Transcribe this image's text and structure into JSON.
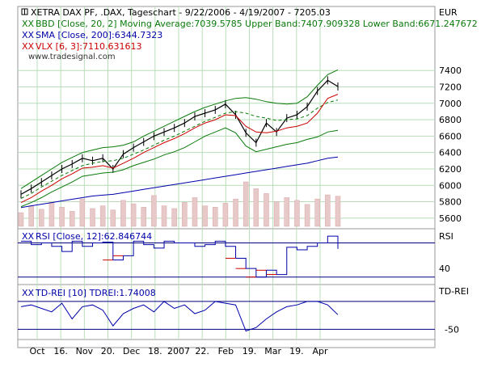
{
  "chart_data": {
    "type": "line",
    "title": "XETRA DAX PF, .DAX, Tageschart - 9/22/2006 - 4/19/2007 - 7205.03",
    "currency": "EUR",
    "watermark": "www.tradesignal.com",
    "x_tick_labels": [
      "Oct",
      "16.",
      "Nov",
      "20.",
      "Dec",
      "18.",
      "2007",
      "22.",
      "Feb",
      "19.",
      "Mar",
      "19.",
      "Apr"
    ],
    "legend": [
      {
        "marker": "XX",
        "text": "BBD [Close, 20, 2] Moving Average:7039.5785 Upper Band:7407.909328 Lower Band:6671.247672",
        "color": "#0a7a0a"
      },
      {
        "marker": "XX",
        "text": "SMA [Close, 200]:6344.7323",
        "color": "#0000aa"
      },
      {
        "marker": "XX",
        "text": "VLX [6, 3]:7110.631613",
        "color": "#cc0000"
      }
    ],
    "price_panel": {
      "ylim": [
        5500,
        7550
      ],
      "y_ticks": [
        7400,
        7200,
        7000,
        6800,
        6600,
        6400,
        6200,
        6000,
        5800,
        5600
      ],
      "dates": [
        "2006-09-22",
        "2006-10-02",
        "2006-10-09",
        "2006-10-16",
        "2006-10-23",
        "2006-11-01",
        "2006-11-08",
        "2006-11-15",
        "2006-11-22",
        "2006-11-29",
        "2006-12-06",
        "2006-12-13",
        "2006-12-20",
        "2006-12-29",
        "2007-01-08",
        "2007-01-15",
        "2007-01-22",
        "2007-01-29",
        "2007-02-05",
        "2007-02-12",
        "2007-02-19",
        "2007-02-26",
        "2007-03-01",
        "2007-03-05",
        "2007-03-09",
        "2007-03-14",
        "2007-03-19",
        "2007-03-26",
        "2007-04-02",
        "2007-04-09",
        "2007-04-16",
        "2007-04-19"
      ],
      "series": [
        {
          "name": "DAX Close",
          "color": "#000000",
          "values": [
            5890,
            5960,
            6040,
            6120,
            6200,
            6260,
            6330,
            6300,
            6330,
            6200,
            6380,
            6460,
            6530,
            6600,
            6650,
            6700,
            6760,
            6840,
            6880,
            6920,
            6990,
            6860,
            6640,
            6520,
            6760,
            6650,
            6820,
            6860,
            6960,
            7150,
            7280,
            7205
          ]
        },
        {
          "name": "Moving Average",
          "color": "#0a7a0a",
          "values": [
            5840,
            5900,
            5980,
            6050,
            6120,
            6180,
            6240,
            6270,
            6290,
            6300,
            6330,
            6380,
            6430,
            6490,
            6550,
            6600,
            6660,
            6720,
            6780,
            6830,
            6880,
            6900,
            6880,
            6840,
            6820,
            6790,
            6800,
            6810,
            6850,
            6940,
            7010,
            7040
          ]
        },
        {
          "name": "Upper Band",
          "color": "#0a7a0a",
          "values": [
            5960,
            6040,
            6120,
            6200,
            6280,
            6340,
            6400,
            6430,
            6460,
            6470,
            6490,
            6530,
            6600,
            6660,
            6720,
            6780,
            6840,
            6900,
            6950,
            6990,
            7030,
            7060,
            7070,
            7050,
            7020,
            7000,
            6990,
            7000,
            7080,
            7220,
            7350,
            7408
          ]
        },
        {
          "name": "Lower Band",
          "color": "#0a7a0a",
          "values": [
            5740,
            5790,
            5850,
            5920,
            5980,
            6040,
            6110,
            6130,
            6150,
            6160,
            6190,
            6240,
            6280,
            6320,
            6370,
            6410,
            6460,
            6530,
            6600,
            6650,
            6700,
            6640,
            6480,
            6410,
            6440,
            6470,
            6500,
            6520,
            6560,
            6590,
            6650,
            6671
          ]
        },
        {
          "name": "VLX",
          "color": "#cc0000",
          "values": [
            5790,
            5850,
            5930,
            6000,
            6080,
            6140,
            6210,
            6220,
            6240,
            6210,
            6270,
            6330,
            6400,
            6460,
            6520,
            6570,
            6630,
            6700,
            6760,
            6800,
            6860,
            6850,
            6720,
            6650,
            6640,
            6660,
            6700,
            6720,
            6760,
            6880,
            7060,
            7110
          ]
        },
        {
          "name": "SMA",
          "color": "#0000aa",
          "values": [
            5730,
            5750,
            5770,
            5790,
            5810,
            5830,
            5850,
            5870,
            5880,
            5890,
            5910,
            5930,
            5950,
            5970,
            5990,
            6010,
            6030,
            6050,
            6070,
            6090,
            6110,
            6130,
            6150,
            6170,
            6190,
            6210,
            6230,
            6250,
            6270,
            6300,
            6330,
            6345
          ]
        }
      ],
      "volume": [
        20,
        30,
        25,
        35,
        28,
        22,
        40,
        26,
        30,
        24,
        38,
        33,
        28,
        45,
        30,
        26,
        35,
        42,
        30,
        28,
        34,
        40,
        65,
        55,
        48,
        36,
        42,
        38,
        32,
        40,
        46,
        44
      ]
    },
    "rsi_panel": {
      "label": "RSI",
      "legend": {
        "marker": "XX",
        "text": "RSI [Close, 12]:62.846744",
        "color": "#0000aa"
      },
      "y_ticks": [
        40
      ],
      "upper_level": 70,
      "lower_level": 30,
      "ylim": [
        25,
        80
      ],
      "values": [
        72,
        68,
        70,
        66,
        60,
        72,
        66,
        70,
        71,
        50,
        55,
        72,
        68,
        64,
        72,
        70,
        70,
        66,
        68,
        72,
        66,
        52,
        40,
        30,
        38,
        33,
        65,
        62,
        66,
        70,
        78,
        63
      ]
    },
    "tdrei_panel": {
      "label": "TD-REI",
      "legend": {
        "marker": "XX",
        "text": "TD-REI [10] TDREI:1.74008",
        "color": "#0000aa"
      },
      "y_ticks": [
        -50
      ],
      "upper_level": 40,
      "lower_level": -40,
      "ylim": [
        -60,
        70
      ],
      "values": [
        25,
        30,
        20,
        10,
        35,
        -10,
        25,
        30,
        15,
        -30,
        5,
        20,
        30,
        10,
        40,
        20,
        30,
        5,
        15,
        40,
        35,
        30,
        -45,
        -35,
        -10,
        10,
        25,
        30,
        40,
        40,
        30,
        2
      ]
    }
  }
}
